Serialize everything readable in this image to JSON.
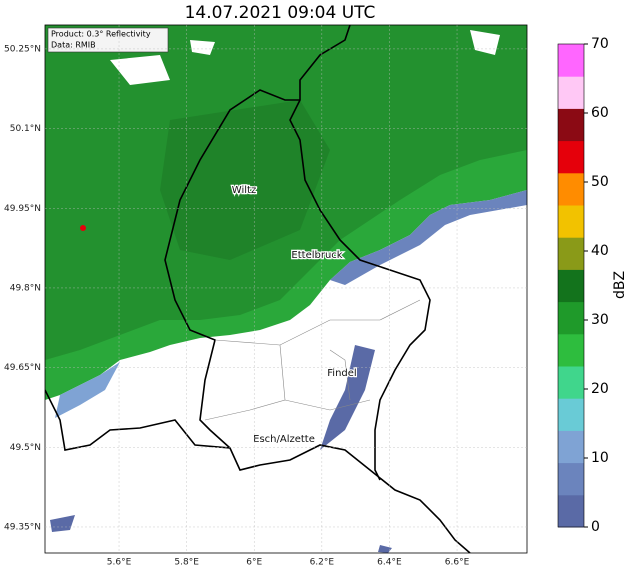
{
  "title": "14.07.2021 09:04 UTC",
  "info": {
    "product": "Product: 0.3° Reflectivity",
    "source": "Data: RMIB"
  },
  "map": {
    "xlim": [
      5.381,
      6.807
    ],
    "ylim": [
      49.301,
      50.295
    ],
    "xticks": [
      {
        "value": 5.6,
        "label": "5.6°E"
      },
      {
        "value": 5.8,
        "label": "5.8°E"
      },
      {
        "value": 6.0,
        "label": "6°E"
      },
      {
        "value": 6.2,
        "label": "6.2°E"
      },
      {
        "value": 6.4,
        "label": "6.4°E"
      },
      {
        "value": 6.6,
        "label": "6.6°E"
      }
    ],
    "yticks": [
      {
        "value": 49.35,
        "label": "49.35°N"
      },
      {
        "value": 49.5,
        "label": "49.5°N"
      },
      {
        "value": 49.65,
        "label": "49.65°N"
      },
      {
        "value": 49.8,
        "label": "49.8°N"
      },
      {
        "value": 49.95,
        "label": "49.95°N"
      },
      {
        "value": 50.1,
        "label": "50.1°N"
      },
      {
        "value": 50.25,
        "label": "50.25°N"
      }
    ],
    "cities": [
      {
        "name": "Wiltz"
      },
      {
        "name": "Ettelbruck"
      },
      {
        "name": "Findel"
      },
      {
        "name": "Esch/Alzette"
      }
    ]
  },
  "colorbar": {
    "label": "dBZ",
    "lim": [
      0,
      70
    ],
    "ticks": [
      0,
      10,
      20,
      30,
      40,
      50,
      60,
      70
    ],
    "colors": [
      "#5a6aa6",
      "#6b84bd",
      "#7fa3d4",
      "#69cbd6",
      "#40d68c",
      "#2ebd3e",
      "#1f9a2a",
      "#13731c",
      "#8a9a18",
      "#f2c200",
      "#ff8c00",
      "#e5000b",
      "#8b0a14",
      "#ffc8f5",
      "#ff66ff"
    ]
  }
}
